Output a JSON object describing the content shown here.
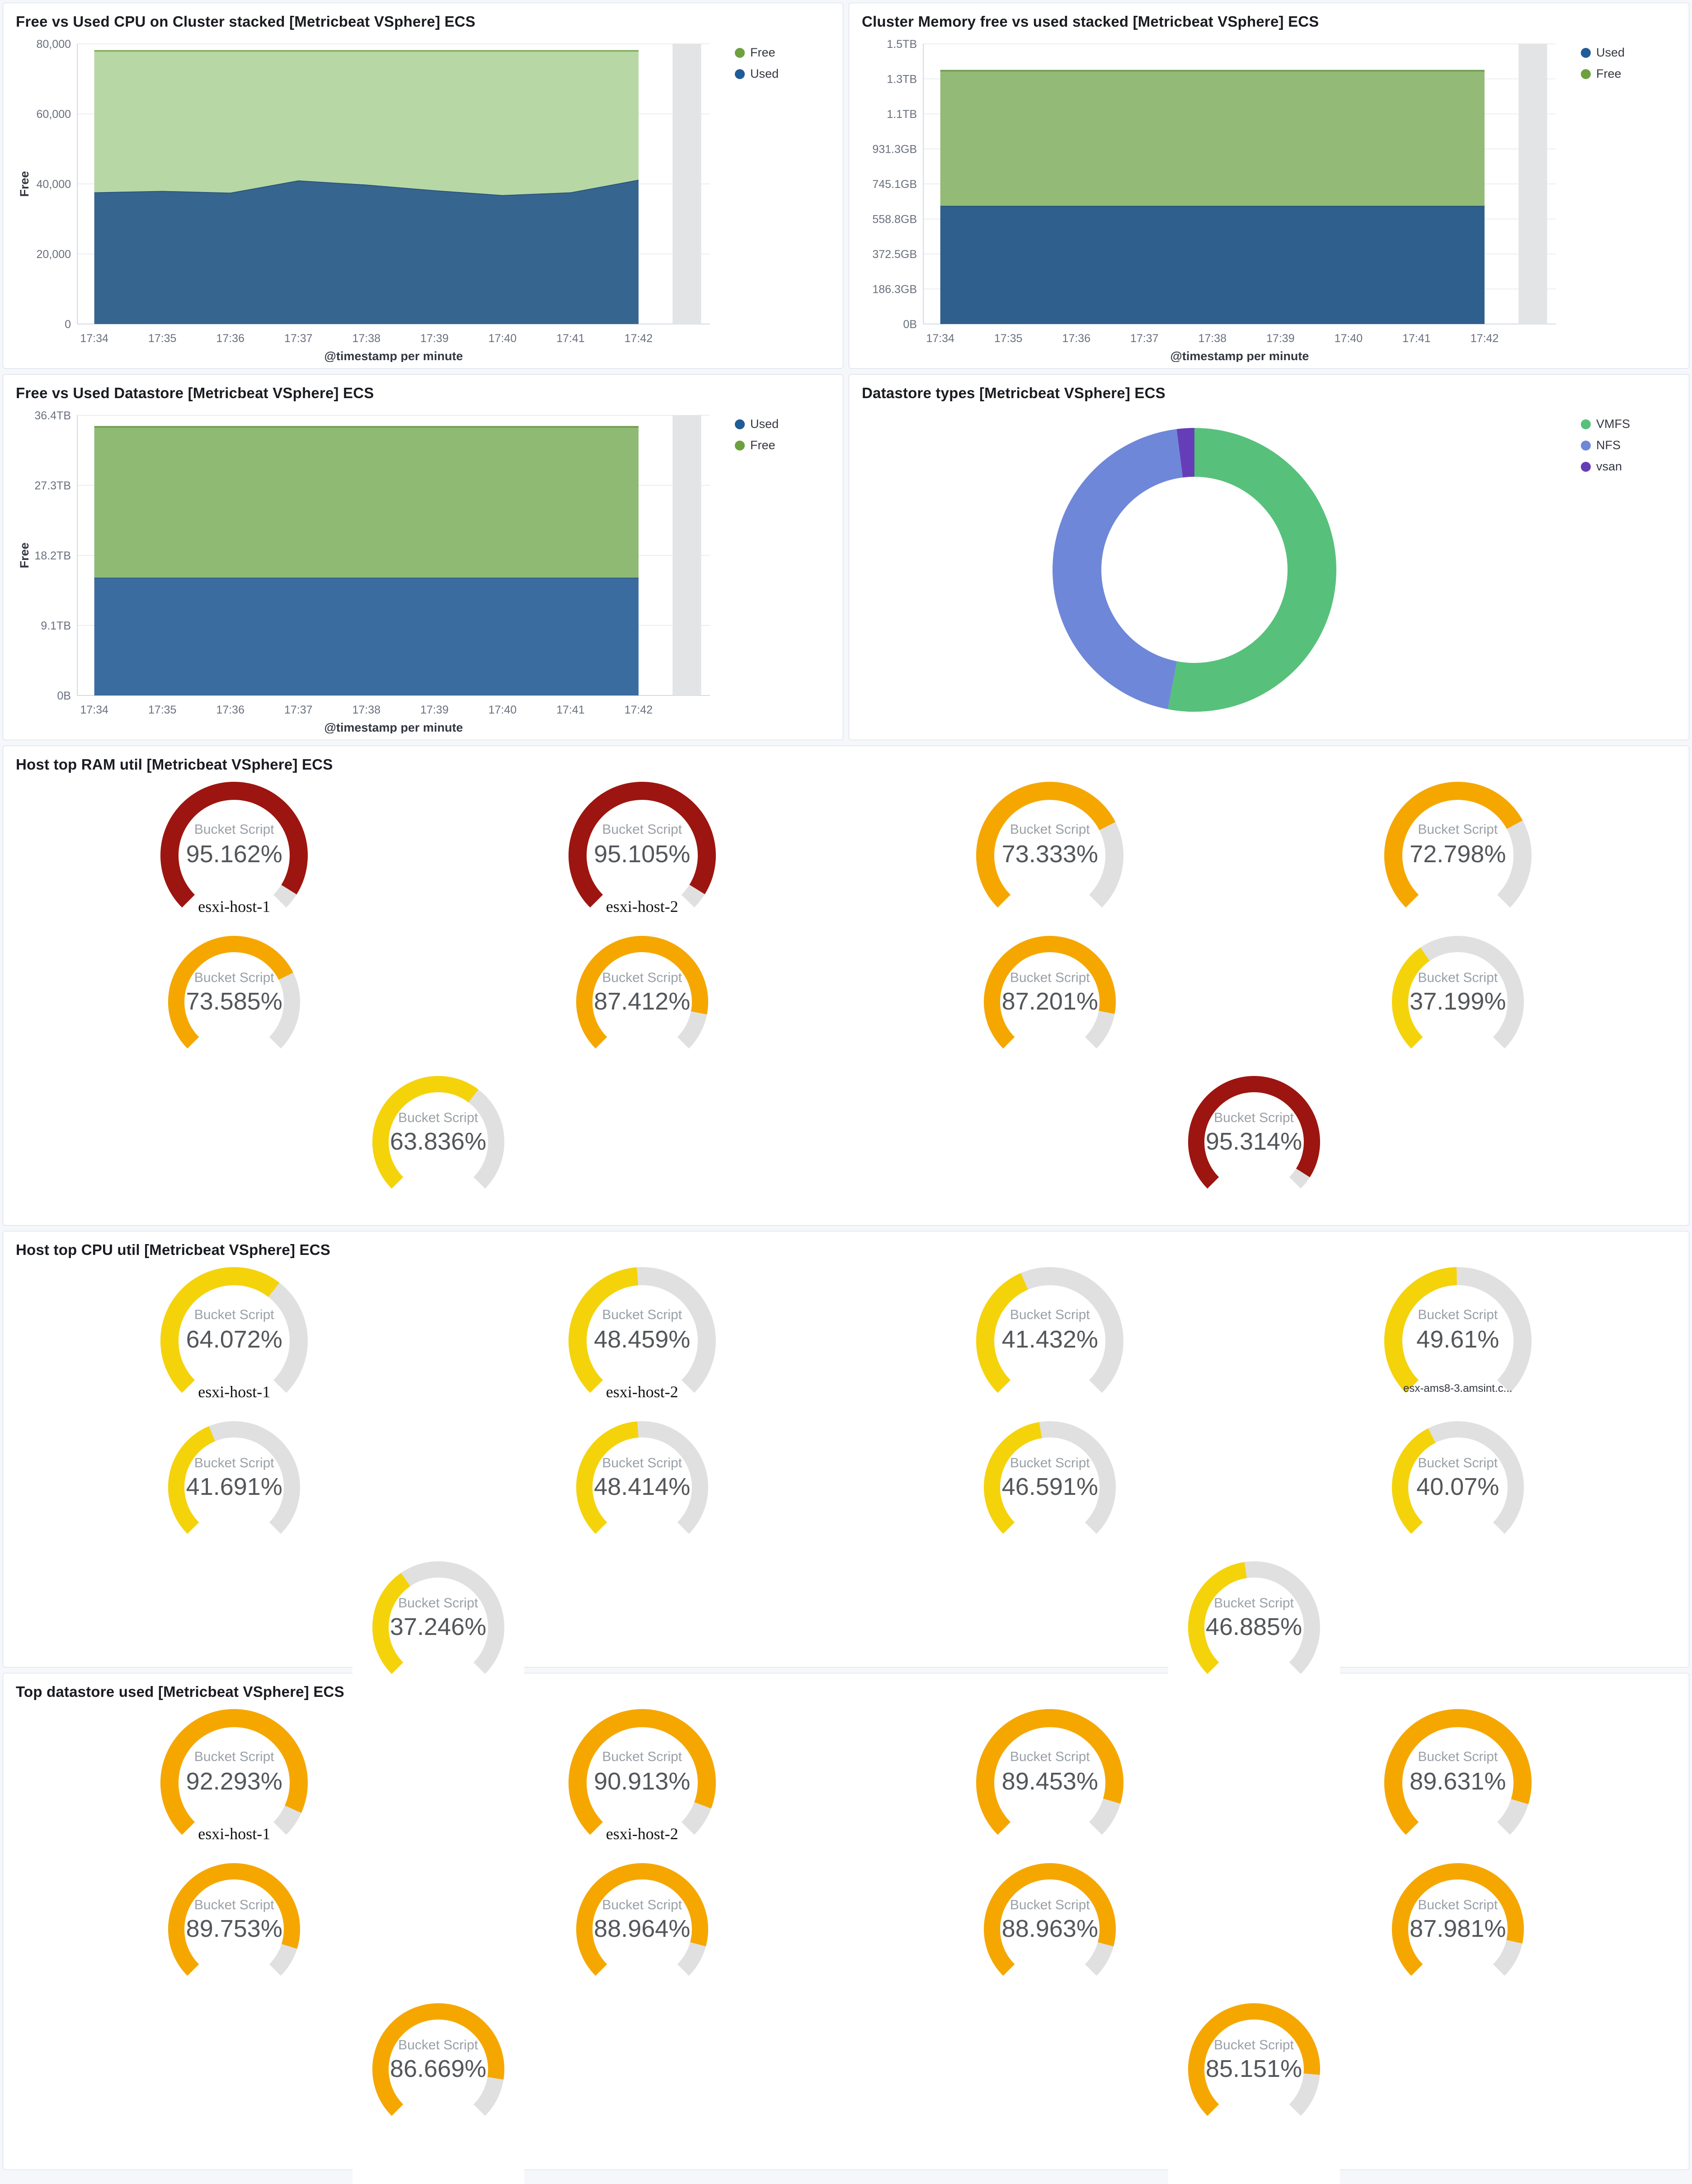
{
  "colors": {
    "page_background": "#F5F7FA",
    "panel_border": "#D3DAE6",
    "title": "#1A1C21",
    "axis_text": "#69707D",
    "axis_line": "#D3DAE6",
    "grid": "#ECEEF1",
    "partial_bucket": "#E3E4E6",
    "gauge_track": "#E0E0E0",
    "gauge_metric_label": "#9AA0A6",
    "gauge_value": "#54575A"
  },
  "panels": {
    "cpu": {
      "title": "Free vs Used CPU on Cluster stacked [Metricbeat VSphere] ECS",
      "chart_data": {
        "type": "area",
        "stacked": true,
        "x": [
          "17:34",
          "17:35",
          "17:36",
          "17:37",
          "17:38",
          "17:39",
          "17:40",
          "17:41",
          "17:42"
        ],
        "xlabel": "@timestamp per minute",
        "ylabel": "Free",
        "ylim": [
          0,
          80000
        ],
        "yticks": [
          {
            "v": 0,
            "label": "0"
          },
          {
            "v": 20000,
            "label": "20,000"
          },
          {
            "v": 40000,
            "label": "40,000"
          },
          {
            "v": 60000,
            "label": "60,000"
          },
          {
            "v": 80000,
            "label": "80,000"
          }
        ],
        "series": [
          {
            "name": "Used",
            "color": "#36658F",
            "line": "#27507A",
            "values": [
              37600,
              38000,
              37500,
              41000,
              39800,
              38200,
              36800,
              37600,
              41200
            ]
          },
          {
            "name": "Free",
            "color": "#B7D7A4",
            "line": "#82AC5F",
            "values": [
              40400,
              40000,
              40500,
              37000,
              38200,
              39800,
              41200,
              40400,
              36800
            ]
          }
        ],
        "legend": [
          {
            "label": "Free",
            "color": "#6DA13F"
          },
          {
            "label": "Used",
            "color": "#1F5C99"
          }
        ]
      }
    },
    "memory": {
      "title": "Cluster Memory free vs used stacked [Metricbeat VSphere] ECS",
      "chart_data": {
        "type": "area",
        "stacked": true,
        "x": [
          "17:34",
          "17:35",
          "17:36",
          "17:37",
          "17:38",
          "17:39",
          "17:40",
          "17:41",
          "17:42"
        ],
        "xlabel": "@timestamp per minute",
        "ylabel": "",
        "ylim": [
          0,
          1536
        ],
        "yticks": [
          {
            "v": 0,
            "label": "0B"
          },
          {
            "v": 192,
            "label": "186.3GB"
          },
          {
            "v": 384,
            "label": "372.5GB"
          },
          {
            "v": 576,
            "label": "558.8GB"
          },
          {
            "v": 768,
            "label": "745.1GB"
          },
          {
            "v": 960,
            "label": "931.3GB"
          },
          {
            "v": 1152,
            "label": "1.1TB"
          },
          {
            "v": 1344,
            "label": "1.3TB"
          },
          {
            "v": 1536,
            "label": "1.5TB"
          }
        ],
        "series": [
          {
            "name": "Used",
            "color": "#2F5F8C",
            "line": "#254C72",
            "values": [
              648,
              648,
              648,
              648,
              648,
              648,
              648,
              648,
              648
            ]
          },
          {
            "name": "Free",
            "color": "#93BB77",
            "line": "#6F9A50",
            "values": [
              741,
              741,
              741,
              741,
              741,
              741,
              741,
              741,
              741
            ]
          }
        ],
        "legend": [
          {
            "label": "Used",
            "color": "#1F5C99"
          },
          {
            "label": "Free",
            "color": "#6DA13F"
          }
        ]
      }
    },
    "datastore": {
      "title": "Free vs Used Datastore [Metricbeat VSphere] ECS",
      "chart_data": {
        "type": "area",
        "stacked": true,
        "x": [
          "17:34",
          "17:35",
          "17:36",
          "17:37",
          "17:38",
          "17:39",
          "17:40",
          "17:41",
          "17:42"
        ],
        "xlabel": "@timestamp per minute",
        "ylabel": "Free",
        "ylim": [
          0,
          36.4
        ],
        "yticks": [
          {
            "v": 0,
            "label": "0B"
          },
          {
            "v": 9.1,
            "label": "9.1TB"
          },
          {
            "v": 18.2,
            "label": "18.2TB"
          },
          {
            "v": 27.3,
            "label": "27.3TB"
          },
          {
            "v": 36.4,
            "label": "36.4TB"
          }
        ],
        "series": [
          {
            "name": "Used",
            "color": "#3A6CA0",
            "line": "#2B5480",
            "values": [
              15.3,
              15.3,
              15.3,
              15.3,
              15.3,
              15.3,
              15.3,
              15.3,
              15.3
            ]
          },
          {
            "name": "Free",
            "color": "#8FBA74",
            "line": "#6C9A4E",
            "values": [
              19.6,
              19.6,
              19.6,
              19.6,
              19.6,
              19.6,
              19.6,
              19.6,
              19.6
            ]
          }
        ],
        "legend": [
          {
            "label": "Used",
            "color": "#1F5C99"
          },
          {
            "label": "Free",
            "color": "#6DA13F"
          }
        ]
      }
    },
    "types": {
      "title": "Datastore types [Metricbeat VSphere] ECS",
      "chart_data": {
        "type": "pie",
        "donut": true,
        "labels": [
          "VMFS",
          "NFS",
          "vsan"
        ],
        "values": [
          53,
          45,
          2
        ],
        "slice_colors": [
          "#57C17B",
          "#6F87D8",
          "#663DB8"
        ],
        "legend": [
          {
            "label": "VMFS",
            "color": "#57C17B"
          },
          {
            "label": "NFS",
            "color": "#6F87D8"
          },
          {
            "label": "vsan",
            "color": "#663DB8"
          }
        ]
      }
    },
    "ram": {
      "title": "Host top RAM util [Metricbeat VSphere] ECS",
      "metric_label": "Bucket Script",
      "overflow_row3": false,
      "gauges": [
        {
          "value": "95.162%",
          "pct": 95.162,
          "color": "#9D1510",
          "sub": "esxi-host-1"
        },
        {
          "value": "95.105%",
          "pct": 95.105,
          "color": "#9D1510",
          "sub": "esxi-host-2"
        },
        {
          "value": "73.333%",
          "pct": 73.333,
          "color": "#F5A700"
        },
        {
          "value": "72.798%",
          "pct": 72.798,
          "color": "#F5A700"
        },
        {
          "value": "73.585%",
          "pct": 73.585,
          "color": "#F5A700"
        },
        {
          "value": "87.412%",
          "pct": 87.412,
          "color": "#F5A700"
        },
        {
          "value": "87.201%",
          "pct": 87.201,
          "color": "#F5A700"
        },
        {
          "value": "37.199%",
          "pct": 37.199,
          "color": "#F5D30B"
        },
        {
          "value": "63.836%",
          "pct": 63.836,
          "color": "#F5D30B"
        },
        {
          "value": "95.314%",
          "pct": 95.314,
          "color": "#9D1510"
        }
      ]
    },
    "cpu_util": {
      "title": "Host top CPU util [Metricbeat VSphere] ECS",
      "metric_label": "Bucket Script",
      "overflow_row3": true,
      "gauges": [
        {
          "value": "64.072%",
          "pct": 64.072,
          "color": "#F5D30B",
          "sub": "esxi-host-1"
        },
        {
          "value": "48.459%",
          "pct": 48.459,
          "color": "#F5D30B",
          "sub": "esxi-host-2"
        },
        {
          "value": "41.432%",
          "pct": 41.432,
          "color": "#F5D30B"
        },
        {
          "value": "49.61%",
          "pct": 49.61,
          "color": "#F5D30B",
          "sub": "esx-ams8-3.amsint.c..."
        },
        {
          "value": "41.691%",
          "pct": 41.691,
          "color": "#F5D30B"
        },
        {
          "value": "48.414%",
          "pct": 48.414,
          "color": "#F5D30B"
        },
        {
          "value": "46.591%",
          "pct": 46.591,
          "color": "#F5D30B"
        },
        {
          "value": "40.07%",
          "pct": 40.07,
          "color": "#F5D30B"
        },
        {
          "value": "37.246%",
          "pct": 37.246,
          "color": "#F5D30B"
        },
        {
          "value": "46.885%",
          "pct": 46.885,
          "color": "#F5D30B"
        }
      ]
    },
    "ds_used": {
      "title": "Top datastore used [Metricbeat VSphere] ECS",
      "metric_label": "Bucket Script",
      "overflow_row3": true,
      "gauges": [
        {
          "value": "92.293%",
          "pct": 92.293,
          "color": "#F5A700",
          "sub": "esxi-host-1"
        },
        {
          "value": "90.913%",
          "pct": 90.913,
          "color": "#F5A700",
          "sub": "esxi-host-2"
        },
        {
          "value": "89.453%",
          "pct": 89.453,
          "color": "#F5A700"
        },
        {
          "value": "89.631%",
          "pct": 89.631,
          "color": "#F5A700"
        },
        {
          "value": "89.753%",
          "pct": 89.753,
          "color": "#F5A700"
        },
        {
          "value": "88.964%",
          "pct": 88.964,
          "color": "#F5A700"
        },
        {
          "value": "88.963%",
          "pct": 88.963,
          "color": "#F5A700"
        },
        {
          "value": "87.981%",
          "pct": 87.981,
          "color": "#F5A700"
        },
        {
          "value": "86.669%",
          "pct": 86.669,
          "color": "#F5A700"
        },
        {
          "value": "85.151%",
          "pct": 85.151,
          "color": "#F5A700"
        }
      ]
    }
  }
}
